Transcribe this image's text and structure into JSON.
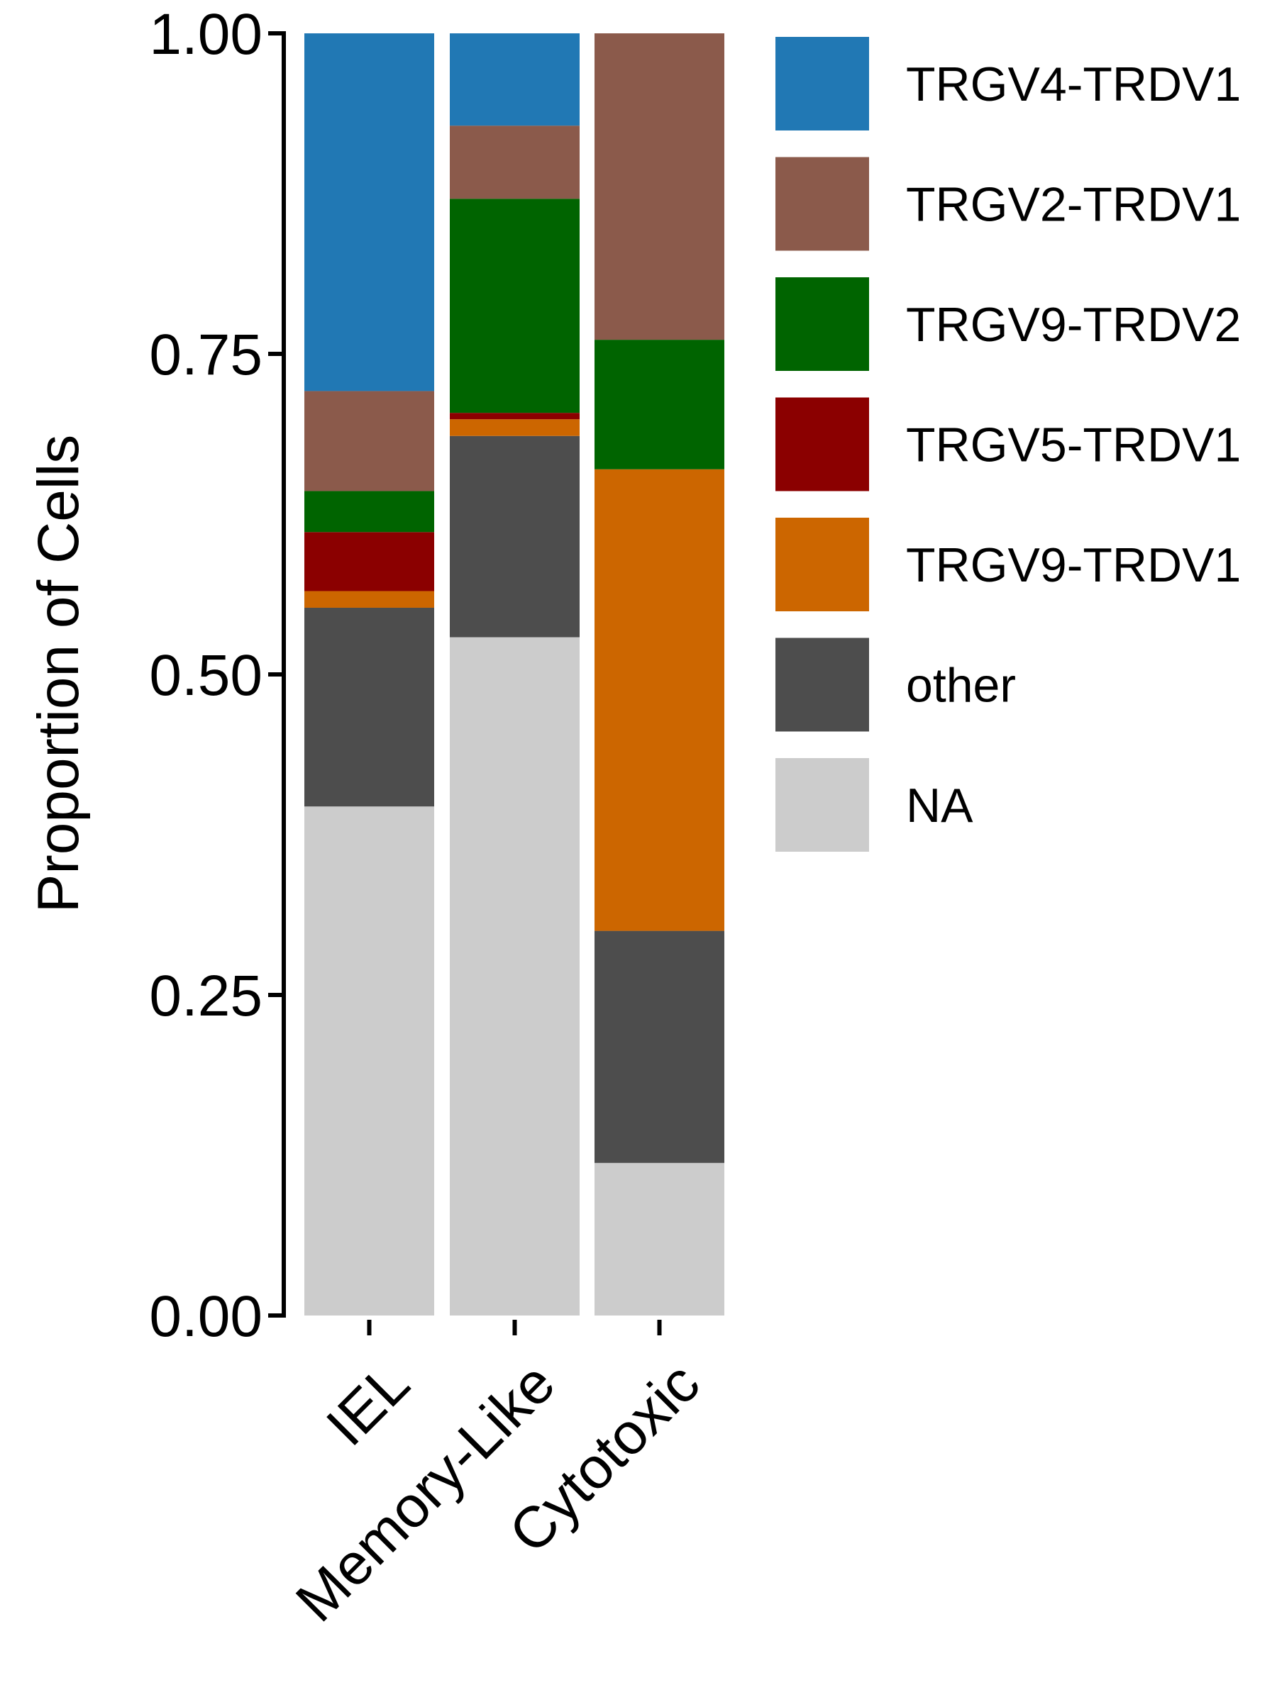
{
  "chart_data": {
    "type": "bar",
    "stacked": true,
    "title": "",
    "xlabel": "",
    "ylabel": "Proportion of Cells",
    "ylim": [
      0,
      1
    ],
    "yticks": [
      0,
      0.25,
      0.5,
      0.75,
      1
    ],
    "ytick_labels": [
      "0.00",
      "0.25",
      "0.50",
      "0.75",
      "1.00"
    ],
    "grid": false,
    "legend": "right",
    "categories": [
      "IEL",
      "Memory-Like",
      "Cytotoxic"
    ],
    "series": [
      {
        "name": "NA",
        "color": "#CCCCCC",
        "values": [
          0.397,
          0.529,
          0.119
        ]
      },
      {
        "name": "other",
        "color": "#4D4D4D",
        "values": [
          0.155,
          0.157,
          0.181
        ]
      },
      {
        "name": "TRGV9-TRDV1",
        "color": "#CC6600",
        "values": [
          0.013,
          0.013,
          0.36
        ]
      },
      {
        "name": "TRGV5-TRDV1",
        "color": "#8B0000",
        "values": [
          0.046,
          0.005,
          0.0
        ]
      },
      {
        "name": "TRGV9-TRDV2",
        "color": "#006400",
        "values": [
          0.032,
          0.167,
          0.101
        ]
      },
      {
        "name": "TRGV2-TRDV1",
        "color": "#8B5A4B",
        "values": [
          0.078,
          0.057,
          0.239
        ]
      },
      {
        "name": "TRGV4-TRDV1",
        "color": "#2178B4",
        "values": [
          0.279,
          0.072,
          0.0
        ]
      }
    ],
    "legend_order": [
      "TRGV4-TRDV1",
      "TRGV2-TRDV1",
      "TRGV9-TRDV2",
      "TRGV5-TRDV1",
      "TRGV9-TRDV1",
      "other",
      "NA"
    ]
  }
}
